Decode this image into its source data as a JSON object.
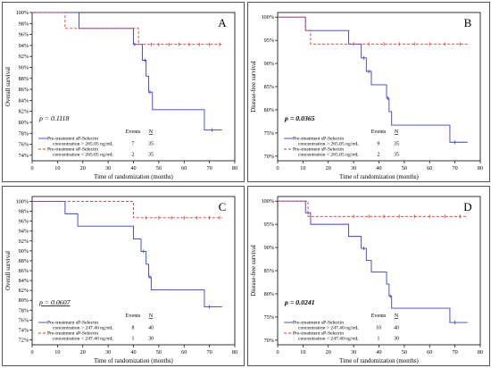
{
  "colors": {
    "group_high": "#3b3bd6",
    "group_low": "#e8302c",
    "axis": "#000000"
  },
  "chart_data": [
    {
      "type": "line",
      "step": true,
      "panel_letter": "A",
      "ylabel": "Overall survival",
      "xlabel": "Time of randomization (months)",
      "ylim": [
        73,
        100
      ],
      "xlim": [
        0,
        80
      ],
      "y_ticks": [
        100,
        98,
        96,
        94,
        92,
        90,
        88,
        86,
        84,
        82,
        80,
        78,
        76,
        74
      ],
      "y_tick_suffix": "%",
      "x_ticks": [
        0,
        10,
        20,
        30,
        40,
        50,
        60,
        70,
        80
      ],
      "p_value": "p = 0.1118",
      "p_bold": false,
      "p_underline": false,
      "table_headers": {
        "events": "Events",
        "n": "N"
      },
      "series": [
        {
          "name": "Pre-treatment sP-Selectin",
          "name_line2": "concentration > 265.05 ng/mL",
          "dash": false,
          "events": "7",
          "n": "35",
          "x": [
            0,
            18.5,
            40,
            43.5,
            45,
            46,
            47.5,
            68,
            75
          ],
          "y": [
            100,
            97.1,
            94.2,
            91.3,
            88.4,
            85.5,
            82.3,
            78.6,
            78.6
          ],
          "censor_x": [
            40.5,
            44.5,
            46.5,
            71
          ]
        },
        {
          "name": "Pre-treatment sP-Selectin",
          "name_line2": "concentration < 265.05 ng/mL",
          "dash": true,
          "events": "2",
          "n": "35",
          "x": [
            0,
            13,
            42,
            75
          ],
          "y": [
            100,
            97.1,
            94.2,
            94.2
          ],
          "censor_x": [
            47,
            50,
            54,
            58,
            62,
            66,
            70,
            74
          ]
        }
      ]
    },
    {
      "type": "line",
      "step": true,
      "panel_letter": "B",
      "ylabel": "Disease-free survival",
      "xlabel": "Time of randomization (months)",
      "ylim": [
        69,
        101
      ],
      "xlim": [
        0,
        80
      ],
      "y_ticks": [
        100,
        95,
        90,
        85,
        80,
        75,
        70
      ],
      "y_tick_suffix": "%",
      "x_ticks": [
        0,
        10,
        20,
        30,
        40,
        50,
        60,
        70,
        80
      ],
      "p_value": "p = 0.0365",
      "p_bold": true,
      "p_underline": false,
      "table_headers": {
        "events": "Events",
        "n": "N"
      },
      "series": [
        {
          "name": "Pre-treatment sP-Selectin",
          "name_line2": "concentration > 265.05 ng/mL",
          "dash": false,
          "events": "9",
          "n": "35",
          "x": [
            0,
            11,
            28,
            33,
            35,
            37,
            43,
            44,
            45,
            68,
            75
          ],
          "y": [
            100,
            97.1,
            94.2,
            91.2,
            88.3,
            85.4,
            82.5,
            79.6,
            76.7,
            73,
            73
          ],
          "censor_x": [
            34,
            36,
            43.5,
            70
          ]
        },
        {
          "name": "Pre-treatment sP-Selectin",
          "name_line2": "concentration < 265.05 ng/mL",
          "dash": true,
          "events": "2",
          "n": "35",
          "x": [
            0,
            11,
            13,
            75
          ],
          "y": [
            100,
            97.1,
            94.2,
            94.2
          ],
          "censor_x": [
            30,
            36,
            42,
            48,
            54,
            60,
            66,
            72
          ]
        }
      ]
    },
    {
      "type": "line",
      "step": true,
      "panel_letter": "C",
      "ylabel": "Overall survival",
      "xlabel": "Time of randomization (months)",
      "ylim": [
        71,
        101
      ],
      "xlim": [
        0,
        80
      ],
      "y_ticks": [
        100,
        98,
        96,
        94,
        92,
        90,
        88,
        86,
        84,
        82,
        80,
        78,
        76,
        74,
        72
      ],
      "y_tick_suffix": "%",
      "x_ticks": [
        0,
        10,
        20,
        30,
        40,
        50,
        60,
        70,
        80
      ],
      "p_value": "p = 0.0607",
      "p_bold": false,
      "p_underline": true,
      "table_headers": {
        "events": "Events",
        "n": "N"
      },
      "series": [
        {
          "name": "Pre-treatment sP-Selectin",
          "name_line2": "concentration > 247.40 ng/mL",
          "dash": false,
          "events": "8",
          "n": "40",
          "x": [
            0,
            13,
            18,
            40,
            43,
            45,
            46,
            47,
            68,
            75
          ],
          "y": [
            100,
            97.5,
            95,
            92.4,
            89.9,
            87.3,
            84.7,
            82.1,
            78.7,
            78.7
          ],
          "censor_x": [
            44,
            46.5,
            70
          ]
        },
        {
          "name": "Pre-treatment sP-Selectin",
          "name_line2": "concentration < 247.40 ng/mL",
          "dash": true,
          "events": "1",
          "n": "30",
          "x": [
            0,
            40,
            75
          ],
          "y": [
            100,
            96.7,
            96.7
          ],
          "censor_x": [
            45,
            50,
            55,
            60,
            65,
            70,
            74
          ]
        }
      ]
    },
    {
      "type": "line",
      "step": true,
      "panel_letter": "D",
      "ylabel": "Disease-free survival",
      "xlabel": "Time of randomization (months)",
      "ylim": [
        69,
        101
      ],
      "xlim": [
        0,
        80
      ],
      "y_ticks": [
        100,
        95,
        90,
        85,
        80,
        75,
        70
      ],
      "y_tick_suffix": "%",
      "x_ticks": [
        0,
        10,
        20,
        30,
        40,
        50,
        60,
        70,
        80
      ],
      "p_value": "p = 0.0241",
      "p_bold": true,
      "p_underline": false,
      "table_headers": {
        "events": "Events",
        "n": "N"
      },
      "series": [
        {
          "name": "Pre-treatment sP-Selectin",
          "name_line2": "concentration > 247.40 ng/mL",
          "dash": false,
          "events": "10",
          "n": "40",
          "x": [
            0,
            11,
            13,
            28,
            33,
            35,
            37,
            43,
            44,
            45,
            68,
            75
          ],
          "y": [
            100,
            97.5,
            95,
            92.4,
            89.8,
            87.2,
            84.7,
            82.1,
            79.5,
            76.9,
            73.8,
            73.8
          ],
          "censor_x": [
            12,
            34,
            44.5,
            70
          ]
        },
        {
          "name": "Pre-treatment sP-Selectin",
          "name_line2": "concentration < 247.40 ng/mL",
          "dash": true,
          "events": "1",
          "n": "30",
          "x": [
            0,
            12,
            75
          ],
          "y": [
            100,
            96.7,
            96.7
          ],
          "censor_x": [
            30,
            36,
            42,
            48,
            54,
            60,
            66,
            72
          ]
        }
      ]
    }
  ]
}
